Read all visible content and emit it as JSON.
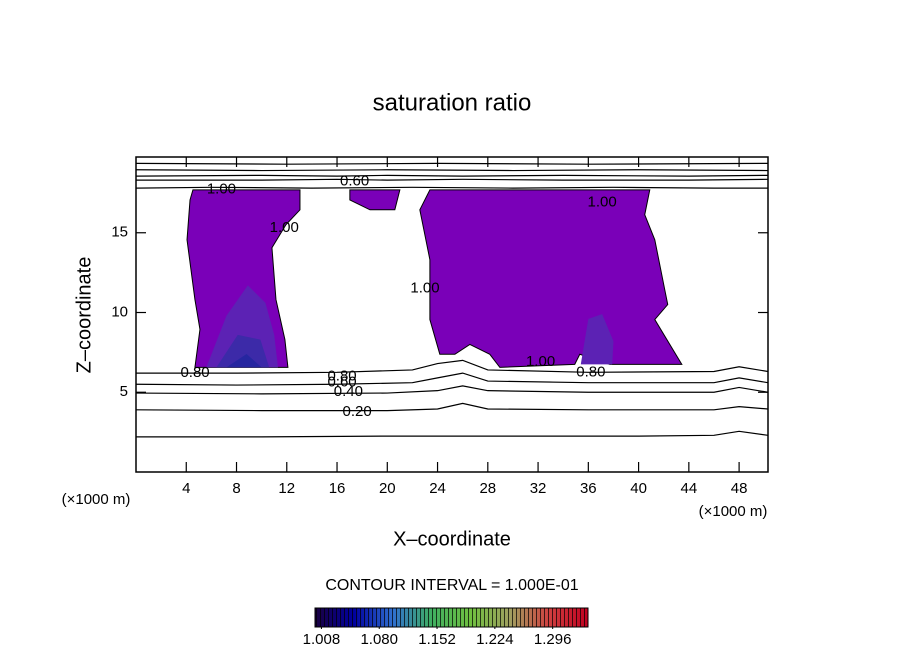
{
  "chart_data": {
    "type": "contour",
    "title": "saturation ratio",
    "xlabel": "X–coordinate",
    "ylabel": "Z–coordinate",
    "x_unit": "(×1000 m)",
    "y_unit": "(×1000 m)",
    "xlim": [
      0,
      50.3
    ],
    "ylim": [
      0,
      19.75
    ],
    "xticks": [
      4,
      8,
      12,
      16,
      20,
      24,
      28,
      32,
      36,
      40,
      44,
      48
    ],
    "yticks": [
      5,
      10,
      15
    ],
    "fill_color": "#7a00b8",
    "regions": [
      {
        "color": "#7a00b8",
        "x": [
          4.53,
          13.05,
          13.05,
          11.93,
          10.82,
          11.14,
          11.85,
          12.09,
          4.69,
          5.09,
          4.69,
          4.06,
          4.3
        ],
        "y": [
          17.69,
          17.69,
          16.44,
          15.5,
          14.06,
          10.81,
          8.31,
          6.56,
          6.56,
          8.94,
          10.81,
          14.56,
          17.06
        ]
      },
      {
        "color": "#7a00b8",
        "x": [
          23.39,
          40.89,
          40.49,
          41.29,
          42.08,
          42.32,
          41.29,
          43.44,
          37.71,
          35.32,
          34.92,
          28.96,
          28.16,
          26.57,
          25.38,
          24.18,
          23.39,
          23.39,
          22.59
        ],
        "y": [
          17.69,
          17.69,
          16.13,
          14.56,
          11.44,
          10.5,
          9.56,
          6.75,
          6.75,
          7.38,
          6.75,
          6.56,
          7.38,
          8.0,
          7.38,
          7.38,
          9.56,
          13.31,
          16.44
        ]
      },
      {
        "color": "#7a00b8",
        "x": [
          17.02,
          21.0,
          20.6,
          18.62,
          17.02
        ],
        "y": [
          17.69,
          17.69,
          16.44,
          16.44,
          17.06
        ]
      },
      {
        "color": "#5c22b4",
        "x": [
          5.6,
          7.2,
          8.9,
          10.3,
          11.0,
          11.3,
          5.9
        ],
        "y": [
          6.56,
          9.8,
          11.7,
          10.6,
          8.6,
          6.56,
          6.56
        ]
      },
      {
        "color": "#3c2aa8",
        "x": [
          6.4,
          8.1,
          9.9,
          10.6,
          6.6
        ],
        "y": [
          6.56,
          8.6,
          8.3,
          6.56,
          6.56
        ]
      },
      {
        "color": "#2626a0",
        "x": [
          7.2,
          8.8,
          10.0,
          7.4
        ],
        "y": [
          6.56,
          7.4,
          6.56,
          6.56
        ]
      },
      {
        "color": "#5c22b4",
        "x": [
          35.4,
          36.0,
          37.1,
          38.0,
          37.9
        ],
        "y": [
          6.75,
          9.6,
          9.9,
          8.2,
          6.75
        ]
      }
    ],
    "contours": [
      {
        "x": [
          0,
          10,
          20,
          30,
          40,
          46,
          48,
          50.3
        ],
        "y": [
          2.2,
          2.2,
          2.25,
          2.25,
          2.25,
          2.3,
          2.55,
          2.3
        ]
      },
      {
        "x": [
          0,
          10,
          20,
          24,
          26,
          28,
          36,
          46,
          48,
          50.3
        ],
        "y": [
          3.9,
          3.85,
          3.85,
          3.95,
          4.3,
          3.95,
          3.9,
          3.9,
          4.1,
          3.95
        ],
        "labels": [
          {
            "text": "0.20",
            "x": 17.6,
            "y": 3.75
          }
        ]
      },
      {
        "x": [
          0,
          10,
          20,
          24,
          26,
          28,
          36,
          46,
          48,
          50.3
        ],
        "y": [
          4.95,
          4.9,
          4.95,
          5.1,
          5.4,
          5.1,
          5.0,
          5.0,
          5.3,
          5.0
        ],
        "labels": [
          {
            "text": "0.40",
            "x": 16.9,
            "y": 5.0
          }
        ]
      },
      {
        "x": [
          0,
          8,
          16,
          22,
          24,
          26,
          28,
          36,
          46,
          48,
          50.3
        ],
        "y": [
          5.5,
          5.45,
          5.5,
          5.6,
          5.9,
          6.2,
          5.7,
          5.6,
          5.6,
          5.9,
          5.6
        ],
        "labels": [
          {
            "text": "0.60",
            "x": 16.4,
            "y": 5.6
          }
        ]
      },
      {
        "x": [
          0,
          8,
          16,
          22,
          24,
          26,
          28,
          36,
          46,
          48,
          50.3
        ],
        "y": [
          6.2,
          6.2,
          6.25,
          6.4,
          6.8,
          7.0,
          6.4,
          6.25,
          6.3,
          6.6,
          6.3
        ],
        "labels": [
          {
            "text": "0.80",
            "x": 4.7,
            "y": 6.2
          },
          {
            "text": "0.80",
            "x": 36.2,
            "y": 6.25
          },
          {
            "text": "0.80",
            "x": 16.4,
            "y": 6.0
          }
        ]
      },
      {
        "x": [
          0,
          6,
          14,
          22,
          30,
          38,
          46,
          50.3
        ],
        "y": [
          17.8,
          17.85,
          17.8,
          17.85,
          17.8,
          17.85,
          17.8,
          17.8
        ],
        "labels": [
          {
            "text": "1.00",
            "x": 6.8,
            "y": 17.7
          },
          {
            "text": "1.00",
            "x": 11.8,
            "y": 15.3
          },
          {
            "text": "1.00",
            "x": 32.2,
            "y": 6.9
          },
          {
            "text": "1.00",
            "x": 37.1,
            "y": 16.9
          },
          {
            "text": "1.00",
            "x": 23.0,
            "y": 11.5
          }
        ]
      },
      {
        "x": [
          0,
          10,
          16,
          20,
          26,
          34,
          44,
          50.3
        ],
        "y": [
          18.3,
          18.3,
          18.35,
          18.3,
          18.35,
          18.3,
          18.3,
          18.35
        ]
      },
      {
        "x": [
          0,
          10,
          16,
          20,
          26,
          34,
          44,
          50.3
        ],
        "y": [
          18.55,
          18.6,
          18.55,
          18.6,
          18.55,
          18.6,
          18.55,
          18.6
        ],
        "labels": [
          {
            "text": "0.60",
            "x": 17.4,
            "y": 18.2
          }
        ]
      },
      {
        "x": [
          0,
          10,
          20,
          30,
          40,
          50.3
        ],
        "y": [
          18.95,
          18.9,
          18.95,
          18.9,
          18.95,
          18.9
        ]
      },
      {
        "x": [
          0,
          12,
          24,
          36,
          50.3
        ],
        "y": [
          19.35,
          19.3,
          19.35,
          19.3,
          19.35
        ]
      }
    ],
    "contour_interval": "CONTOUR INTERVAL = 1.000E-01",
    "colorbar": {
      "lim": [
        1.0,
        1.34
      ],
      "colors": [
        "#1a0040",
        "#0000a0",
        "#3070d0",
        "#40b060",
        "#70c040",
        "#a0a060",
        "#d04040",
        "#c00020"
      ],
      "ticks": [
        1.008,
        {
          "value": 1.08,
          "label": "1.080"
        },
        1.152,
        1.224,
        1.296
      ]
    }
  }
}
